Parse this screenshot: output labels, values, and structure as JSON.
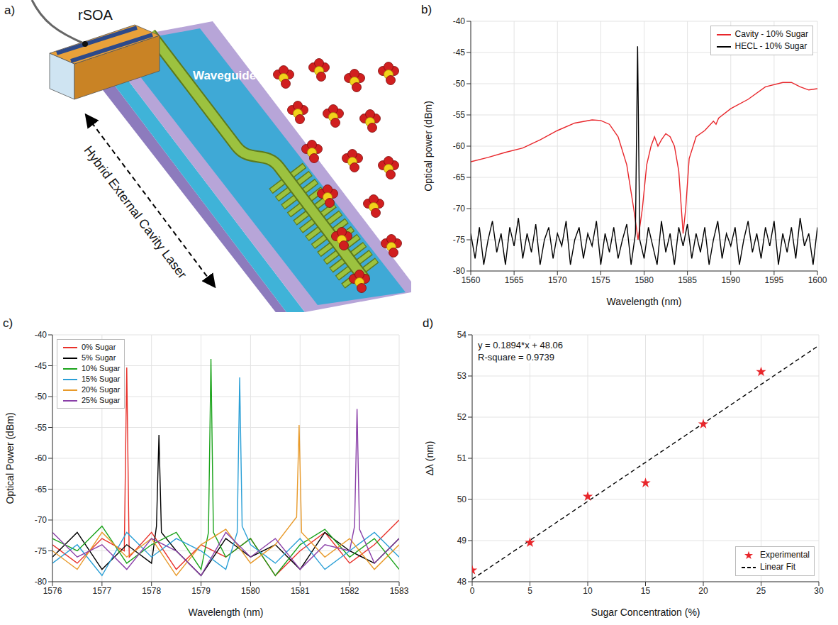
{
  "diagram": {
    "panel": "a)",
    "rsoa_label": "rSOA",
    "waveguide_label": "Waveguide",
    "cavity_label": "Hybrid External Cavity Laser"
  },
  "chart_data": [
    {
      "panel": "b)",
      "type": "line",
      "xlabel": "Wavelength (nm)",
      "ylabel": "Optical power (dBm)",
      "xlim": [
        1560,
        1600
      ],
      "xticks": [
        1560,
        1565,
        1570,
        1575,
        1580,
        1585,
        1590,
        1595,
        1600
      ],
      "ylim": [
        -80,
        -40
      ],
      "yticks": [
        -80,
        -75,
        -70,
        -65,
        -60,
        -55,
        -50,
        -45,
        -40
      ],
      "grid": true,
      "legend": "upper right",
      "series": [
        {
          "name": "Cavity - 10% Sugar",
          "color": "#e8262b",
          "x": [
            1560,
            1562,
            1564,
            1566,
            1568,
            1570,
            1572,
            1574,
            1575,
            1576,
            1577,
            1578,
            1578.8,
            1579.3,
            1579.8,
            1580.3,
            1580.8,
            1581.2,
            1581.6,
            1582,
            1582.5,
            1583,
            1583.5,
            1584,
            1584.5,
            1584.8,
            1585.2,
            1586,
            1587,
            1588,
            1588.3,
            1588.6,
            1590,
            1592,
            1594,
            1596,
            1597,
            1598,
            1599,
            1600
          ],
          "values": [
            -62.5,
            -61.8,
            -61,
            -60.3,
            -59,
            -57.5,
            -56.3,
            -55.8,
            -55.9,
            -56.5,
            -58.5,
            -63,
            -70,
            -75,
            -70,
            -63,
            -60,
            -58.5,
            -60,
            -59,
            -58,
            -58.5,
            -60,
            -64,
            -74,
            -70,
            -62,
            -58.5,
            -57.5,
            -56,
            -56.5,
            -55.5,
            -54,
            -52.5,
            -50.5,
            -49.8,
            -49.8,
            -50.5,
            -51,
            -50.8
          ]
        },
        {
          "name": "HECL - 10% Sugar",
          "color": "#000000",
          "x": [
            1560,
            1560.5,
            1561,
            1561.5,
            1562,
            1562.5,
            1563,
            1563.5,
            1564,
            1564.5,
            1565,
            1565.5,
            1566,
            1566.5,
            1567,
            1567.5,
            1568,
            1568.5,
            1569,
            1569.5,
            1570,
            1570.5,
            1571,
            1571.5,
            1572,
            1572.5,
            1573,
            1573.5,
            1574,
            1574.5,
            1575,
            1575.5,
            1576,
            1576.5,
            1577,
            1577.5,
            1578,
            1578.5,
            1579,
            1579.25,
            1579.5,
            1580,
            1580.5,
            1581,
            1581.5,
            1582,
            1582.5,
            1583,
            1583.5,
            1584,
            1584.5,
            1585,
            1585.5,
            1586,
            1586.5,
            1587,
            1587.5,
            1588,
            1588.5,
            1589,
            1589.5,
            1590,
            1590.5,
            1591,
            1591.5,
            1592,
            1592.5,
            1593,
            1593.5,
            1594,
            1594.5,
            1595,
            1595.5,
            1596,
            1596.5,
            1597,
            1597.5,
            1598,
            1598.5,
            1599,
            1599.5,
            1600
          ],
          "values": [
            -74,
            -78,
            -73,
            -79,
            -75,
            -72,
            -77,
            -74,
            -79,
            -73,
            -76,
            -71.5,
            -78,
            -74,
            -77,
            -72.5,
            -79,
            -75,
            -73,
            -78,
            -74,
            -76,
            -72,
            -79,
            -75,
            -73,
            -78,
            -74,
            -76,
            -72,
            -79,
            -74,
            -77,
            -73,
            -78,
            -75,
            -72.5,
            -79,
            -74,
            -44,
            -75,
            -78,
            -73,
            -76,
            -79,
            -72,
            -77,
            -74,
            -79,
            -73,
            -76,
            -72.5,
            -78,
            -74,
            -77,
            -73,
            -79,
            -75,
            -72,
            -78,
            -74,
            -76,
            -73,
            -79,
            -75,
            -72,
            -77,
            -74,
            -78,
            -73,
            -76,
            -72,
            -79,
            -74,
            -77,
            -73,
            -78,
            -71.5,
            -76,
            -74,
            -79,
            -73
          ]
        }
      ]
    },
    {
      "panel": "c)",
      "type": "line",
      "xlabel": "Wavelength (nm)",
      "ylabel": "Optical Power (dBm)",
      "xlim": [
        1576,
        1583
      ],
      "xticks": [
        1576,
        1577,
        1578,
        1579,
        1580,
        1581,
        1582,
        1583
      ],
      "ylim": [
        -80,
        -40
      ],
      "yticks": [
        -80,
        -75,
        -70,
        -65,
        -60,
        -55,
        -50,
        -45,
        -40
      ],
      "grid": true,
      "legend": "upper left",
      "series": [
        {
          "name": "0% Sugar",
          "color": "#e8312a",
          "x": [
            1576,
            1576.5,
            1577,
            1577.45,
            1577.5,
            1577.55,
            1578,
            1578.5,
            1579,
            1579.5,
            1580,
            1580.5,
            1581,
            1581.5,
            1582,
            1582.5,
            1583
          ],
          "values": [
            -74,
            -77,
            -73,
            -75,
            -45.3,
            -76,
            -72,
            -78,
            -74,
            -76,
            -73,
            -79,
            -75,
            -72,
            -77,
            -74,
            -70
          ]
        },
        {
          "name": "5% Sugar",
          "color": "#000000",
          "x": [
            1576,
            1576.5,
            1577,
            1577.5,
            1578,
            1578.1,
            1578.15,
            1578.2,
            1578.5,
            1579,
            1579.5,
            1580,
            1580.5,
            1581,
            1581.5,
            1582,
            1582.5,
            1583
          ],
          "values": [
            -76,
            -72,
            -78,
            -74,
            -77,
            -71,
            -56.2,
            -72,
            -75,
            -79,
            -73,
            -76,
            -74,
            -78,
            -72,
            -75,
            -77,
            -73
          ]
        },
        {
          "name": "10% Sugar",
          "color": "#1aa31a",
          "x": [
            1576,
            1576.5,
            1577,
            1577.5,
            1578,
            1578.5,
            1579,
            1579.15,
            1579.2,
            1579.25,
            1579.5,
            1580,
            1580.5,
            1581,
            1581.5,
            1582,
            1582.5,
            1583
          ],
          "values": [
            -73,
            -75,
            -71,
            -77,
            -74,
            -72,
            -78,
            -72,
            -43.9,
            -72,
            -76,
            -73,
            -79,
            -74,
            -71.5,
            -76,
            -73,
            -78
          ]
        },
        {
          "name": "15% Sugar",
          "color": "#2a9fd6",
          "x": [
            1576,
            1576.5,
            1577,
            1577.5,
            1578,
            1578.5,
            1579,
            1579.5,
            1579.73,
            1579.78,
            1579.83,
            1580,
            1580.5,
            1581,
            1581.5,
            1582,
            1582.5,
            1583
          ],
          "values": [
            -77,
            -74,
            -79,
            -72,
            -76,
            -73,
            -75,
            -78,
            -72,
            -46.9,
            -71,
            -74,
            -77,
            -73,
            -78,
            -75,
            -72,
            -76
          ]
        },
        {
          "name": "20% Sugar",
          "color": "#e89a2a",
          "x": [
            1576,
            1576.5,
            1577,
            1577.5,
            1578,
            1578.5,
            1579,
            1579.5,
            1580,
            1580.5,
            1580.93,
            1580.98,
            1581.03,
            1581.5,
            1582,
            1582.5,
            1583
          ],
          "values": [
            -75,
            -78,
            -72,
            -76,
            -73,
            -79,
            -74,
            -71.5,
            -77,
            -74,
            -69.5,
            -54.6,
            -72,
            -76,
            -73,
            -78,
            -74
          ]
        },
        {
          "name": "25% Sugar",
          "color": "#8a3fa8",
          "x": [
            1576,
            1576.5,
            1577,
            1577.5,
            1578,
            1578.5,
            1579,
            1579.5,
            1580,
            1580.5,
            1581,
            1581.5,
            1582,
            1582.1,
            1582.15,
            1582.2,
            1582.5,
            1583
          ],
          "values": [
            -72,
            -76,
            -74,
            -78,
            -73,
            -75,
            -79,
            -72,
            -76,
            -73,
            -78,
            -74,
            -75,
            -71,
            -52,
            -71.5,
            -77,
            -73
          ]
        }
      ]
    },
    {
      "panel": "d)",
      "type": "scatter",
      "xlabel": "Sugar Concentration (%)",
      "ylabel": "Δλ (nm)",
      "xlim": [
        0,
        30
      ],
      "xticks": [
        0,
        5,
        10,
        15,
        20,
        25,
        30
      ],
      "ylim": [
        48,
        54
      ],
      "yticks": [
        48,
        49,
        50,
        51,
        52,
        53,
        54
      ],
      "grid": true,
      "legend": "lower right",
      "annotations": [
        "y = 0.1894*x + 48.06",
        "R-square = 0.9739"
      ],
      "series": [
        {
          "name": "Experimental",
          "type": "scatter",
          "color": "#e8262b",
          "marker": "star",
          "x": [
            0,
            5,
            10,
            15,
            20,
            25
          ],
          "values": [
            48.28,
            48.95,
            50.07,
            50.4,
            51.83,
            53.1
          ]
        },
        {
          "name": "Linear Fit",
          "type": "line",
          "color": "#000000",
          "line_style": "dashed",
          "x": [
            0,
            30
          ],
          "values": [
            48.06,
            53.742
          ]
        }
      ]
    }
  ]
}
